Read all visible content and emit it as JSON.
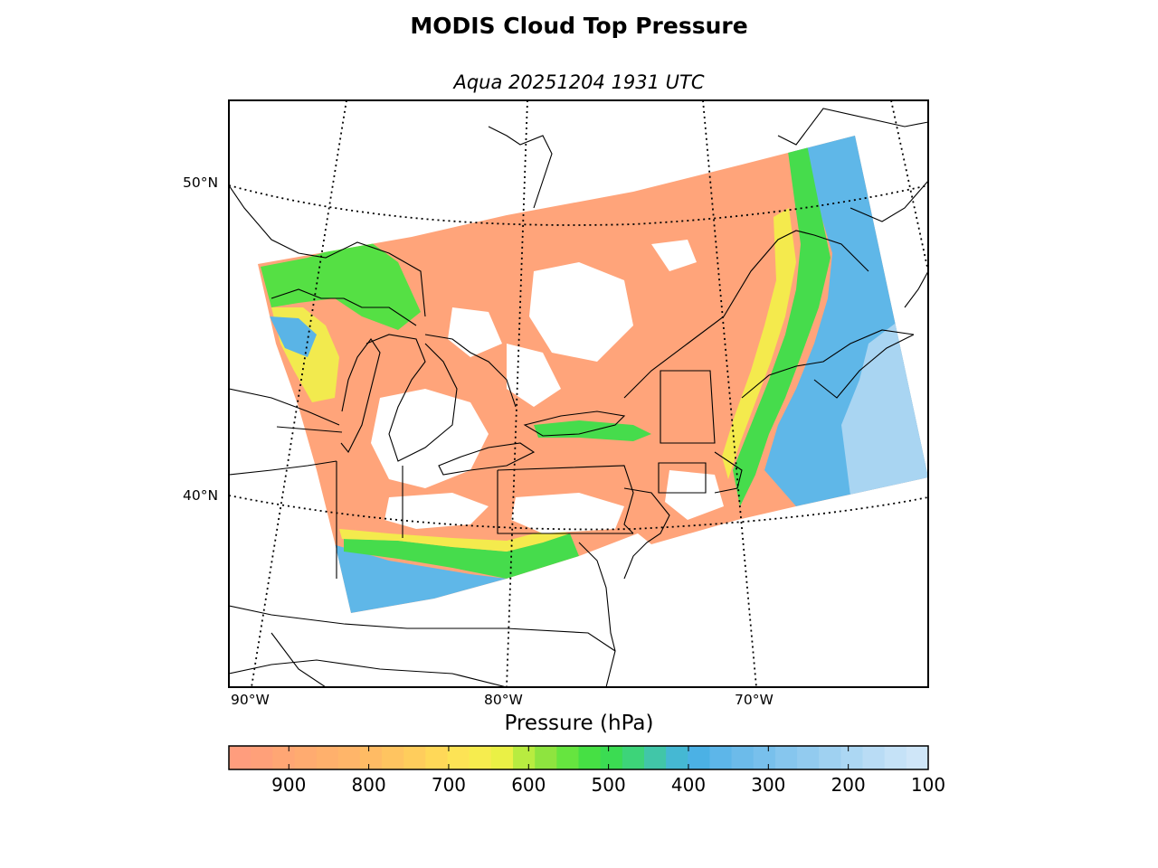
{
  "title": "MODIS Cloud Top Pressure",
  "subtitle": "Aqua 20251204 1931 UTC",
  "map": {
    "lat_labels": [
      "50°N",
      "40°N"
    ],
    "lon_labels": [
      "90°W",
      "80°W",
      "70°W"
    ],
    "graticule_style": "dotted",
    "no_data_color": "#ffffff"
  },
  "colorbar": {
    "label": "Pressure (hPa)",
    "range": [
      975,
      100
    ],
    "ticks": [
      "900",
      "800",
      "700",
      "600",
      "500",
      "400",
      "300",
      "200",
      "100"
    ],
    "colors": [
      "#ff9d7d",
      "#ffa079",
      "#ffa674",
      "#ffab70",
      "#ffb06c",
      "#ffb569",
      "#ffbb64",
      "#ffc460",
      "#ffcd5c",
      "#ffd858",
      "#fde355",
      "#f6ec4e",
      "#eaf045",
      "#b8ec40",
      "#8ee43f",
      "#66e53f",
      "#46e044",
      "#3bdc52",
      "#3dd479",
      "#41c6a8",
      "#45b8d3",
      "#4bb1e5",
      "#5db6e9",
      "#6cbbea",
      "#78c0ec",
      "#86c6ee",
      "#92cbef",
      "#9fd1f1",
      "#acd7f3",
      "#b9dcf5",
      "#c5e2f7",
      "#cfe6f8"
    ]
  }
}
